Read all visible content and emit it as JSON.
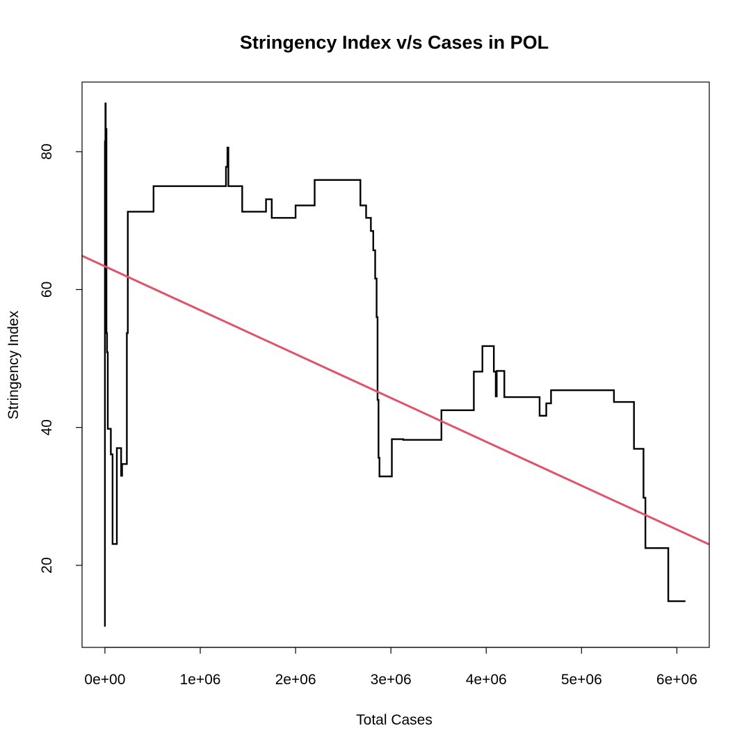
{
  "chart_data": {
    "type": "line",
    "title": "Stringency Index v/s Cases in POL",
    "xlabel": "Total Cases",
    "ylabel": "Stringency Index",
    "xlim": [
      -240000,
      6340000
    ],
    "ylim": [
      8.1,
      90.1
    ],
    "x_ticks": [
      {
        "value": 0,
        "label": "0e+00"
      },
      {
        "value": 1000000,
        "label": "1e+06"
      },
      {
        "value": 2000000,
        "label": "2e+06"
      },
      {
        "value": 3000000,
        "label": "3e+06"
      },
      {
        "value": 4000000,
        "label": "4e+06"
      },
      {
        "value": 5000000,
        "label": "5e+06"
      },
      {
        "value": 6000000,
        "label": "6e+06"
      }
    ],
    "y_ticks": [
      {
        "value": 20,
        "label": "20"
      },
      {
        "value": 40,
        "label": "40"
      },
      {
        "value": 60,
        "label": "60"
      },
      {
        "value": 80,
        "label": "80"
      }
    ],
    "grid": false,
    "series": [
      {
        "color": "#000000",
        "points": [
          [
            0,
            11.1
          ],
          [
            0,
            81.5
          ],
          [
            5000,
            81.5
          ],
          [
            5000,
            87.0
          ],
          [
            8000,
            87.0
          ],
          [
            8000,
            79.6
          ],
          [
            12000,
            79.6
          ],
          [
            12000,
            83.3
          ],
          [
            16000,
            83.3
          ],
          [
            16000,
            53.7
          ],
          [
            22000,
            53.7
          ],
          [
            22000,
            50.9
          ],
          [
            30000,
            50.9
          ],
          [
            30000,
            39.8
          ],
          [
            62000,
            39.8
          ],
          [
            62000,
            36.1
          ],
          [
            80000,
            36.1
          ],
          [
            80000,
            23.1
          ],
          [
            125000,
            23.1
          ],
          [
            125000,
            37.0
          ],
          [
            170000,
            37.0
          ],
          [
            170000,
            33.0
          ],
          [
            180000,
            33.0
          ],
          [
            180000,
            34.7
          ],
          [
            230000,
            34.7
          ],
          [
            230000,
            53.7
          ],
          [
            240000,
            53.7
          ],
          [
            240000,
            71.3
          ],
          [
            510000,
            71.3
          ],
          [
            510000,
            75.0
          ],
          [
            1270000,
            75.0
          ],
          [
            1270000,
            77.8
          ],
          [
            1285000,
            77.8
          ],
          [
            1285000,
            80.6
          ],
          [
            1295000,
            80.6
          ],
          [
            1295000,
            75.0
          ],
          [
            1440000,
            75.0
          ],
          [
            1440000,
            71.3
          ],
          [
            1690000,
            71.3
          ],
          [
            1690000,
            73.1
          ],
          [
            1750000,
            73.1
          ],
          [
            1750000,
            70.4
          ],
          [
            2000000,
            70.4
          ],
          [
            2000000,
            72.2
          ],
          [
            2200000,
            72.2
          ],
          [
            2200000,
            75.9
          ],
          [
            2680000,
            75.9
          ],
          [
            2680000,
            72.2
          ],
          [
            2740000,
            72.2
          ],
          [
            2740000,
            70.4
          ],
          [
            2790000,
            70.4
          ],
          [
            2790000,
            68.5
          ],
          [
            2815000,
            68.5
          ],
          [
            2815000,
            65.7
          ],
          [
            2835000,
            65.7
          ],
          [
            2835000,
            61.6
          ],
          [
            2850000,
            61.6
          ],
          [
            2850000,
            56.0
          ],
          [
            2860000,
            56.0
          ],
          [
            2860000,
            44.0
          ],
          [
            2870000,
            44.0
          ],
          [
            2870000,
            35.6
          ],
          [
            2880000,
            35.6
          ],
          [
            2880000,
            32.9
          ],
          [
            3010000,
            32.9
          ],
          [
            3010000,
            38.3
          ],
          [
            3130000,
            38.3
          ],
          [
            3130000,
            38.2
          ],
          [
            3530000,
            38.2
          ],
          [
            3530000,
            42.5
          ],
          [
            3870000,
            42.5
          ],
          [
            3870000,
            48.1
          ],
          [
            3960000,
            48.1
          ],
          [
            3960000,
            51.8
          ],
          [
            4080000,
            51.8
          ],
          [
            4080000,
            48.1
          ],
          [
            4100000,
            48.1
          ],
          [
            4100000,
            44.5
          ],
          [
            4110000,
            44.5
          ],
          [
            4110000,
            48.2
          ],
          [
            4190000,
            48.2
          ],
          [
            4190000,
            44.4
          ],
          [
            4560000,
            44.4
          ],
          [
            4560000,
            41.7
          ],
          [
            4630000,
            41.7
          ],
          [
            4630000,
            43.5
          ],
          [
            4680000,
            43.5
          ],
          [
            4680000,
            45.4
          ],
          [
            5340000,
            45.4
          ],
          [
            5340000,
            43.7
          ],
          [
            5550000,
            43.7
          ],
          [
            5550000,
            36.9
          ],
          [
            5650000,
            36.9
          ],
          [
            5650000,
            29.8
          ],
          [
            5670000,
            29.8
          ],
          [
            5670000,
            22.5
          ],
          [
            5910000,
            22.5
          ],
          [
            5910000,
            14.8
          ],
          [
            6090000,
            14.8
          ]
        ]
      }
    ],
    "trend_line": {
      "color": "#DF536B",
      "intercept": 63.37,
      "slope": -6.362e-06
    }
  }
}
